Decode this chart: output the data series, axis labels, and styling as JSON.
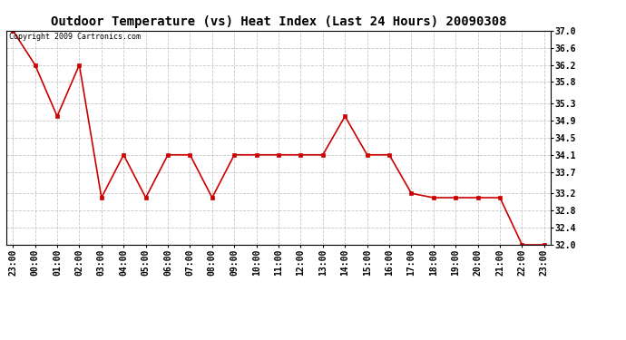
{
  "title": "Outdoor Temperature (vs) Heat Index (Last 24 Hours) 20090308",
  "copyright_text": "Copyright 2009 Cartronics.com",
  "x_labels": [
    "23:00",
    "00:00",
    "01:00",
    "02:00",
    "03:00",
    "04:00",
    "05:00",
    "06:00",
    "07:00",
    "08:00",
    "09:00",
    "10:00",
    "11:00",
    "12:00",
    "13:00",
    "14:00",
    "15:00",
    "16:00",
    "17:00",
    "18:00",
    "19:00",
    "20:00",
    "21:00",
    "22:00",
    "23:00"
  ],
  "y_values": [
    37.0,
    36.2,
    35.0,
    36.2,
    33.1,
    34.1,
    33.1,
    34.1,
    34.1,
    33.1,
    34.1,
    34.1,
    34.1,
    34.1,
    34.1,
    35.0,
    34.1,
    34.1,
    33.2,
    33.1,
    33.1,
    33.1,
    33.1,
    32.0,
    32.0
  ],
  "line_color": "#cc0000",
  "marker_color": "#cc0000",
  "background_color": "#ffffff",
  "plot_bg_color": "#ffffff",
  "grid_color": "#c0c0c0",
  "ylim_min": 32.0,
  "ylim_max": 37.0,
  "yticks": [
    37.0,
    36.6,
    36.2,
    35.8,
    35.3,
    34.9,
    34.5,
    34.1,
    33.7,
    33.2,
    32.8,
    32.4,
    32.0
  ],
  "title_fontsize": 10,
  "tick_fontsize": 7,
  "copyright_fontsize": 6
}
